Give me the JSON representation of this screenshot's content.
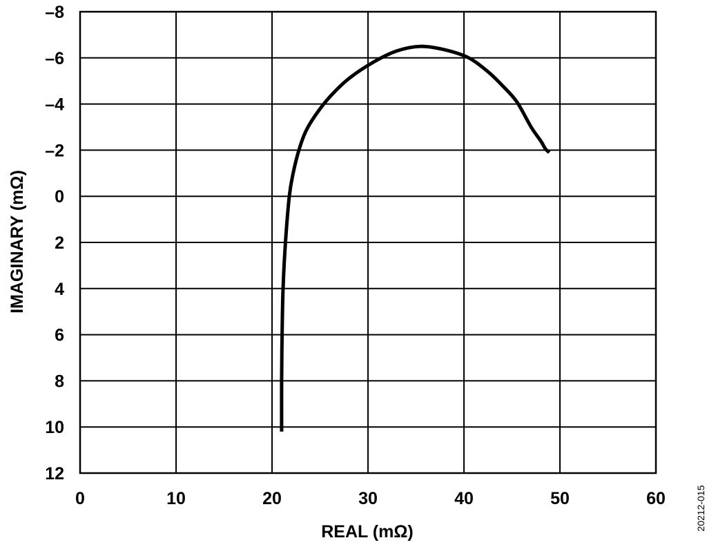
{
  "figure_id": "20212-015",
  "chart_data": {
    "type": "line",
    "title": "",
    "xlabel": "REAL (mΩ)",
    "ylabel": "IMAGINARY (mΩ)",
    "xlim": [
      0,
      60
    ],
    "ylim": [
      12,
      -8
    ],
    "y_inverted": true,
    "grid": true,
    "legend": "none",
    "line_color": "#000000",
    "x_ticks": [
      0,
      10,
      20,
      30,
      40,
      50,
      60
    ],
    "x_tick_labels": [
      "0",
      "10",
      "20",
      "30",
      "40",
      "50",
      "60"
    ],
    "y_ticks": [
      -8,
      -6,
      -4,
      -2,
      0,
      2,
      4,
      6,
      8,
      10,
      12
    ],
    "y_tick_labels": [
      "–8",
      "–6",
      "–4",
      "–2",
      "0",
      "2",
      "4",
      "6",
      "8",
      "10",
      "12"
    ],
    "series": [
      {
        "x": [
          21.0,
          21.0,
          21.05,
          21.15,
          21.4,
          21.8,
          22.2,
          22.8,
          23.5,
          24.5,
          26.0,
          28.0,
          30.5,
          33.0,
          35.5,
          38.0,
          40.5,
          42.5,
          44.0,
          45.5,
          47.0,
          48.0,
          48.5,
          48.9
        ],
        "y": [
          10.2,
          8.0,
          6.0,
          4.0,
          2.0,
          0.0,
          -1.0,
          -2.0,
          -2.8,
          -3.5,
          -4.3,
          -5.1,
          -5.8,
          -6.3,
          -6.5,
          -6.35,
          -6.0,
          -5.4,
          -4.8,
          -4.1,
          -3.0,
          -2.4,
          -2.05,
          -1.9
        ]
      }
    ]
  }
}
